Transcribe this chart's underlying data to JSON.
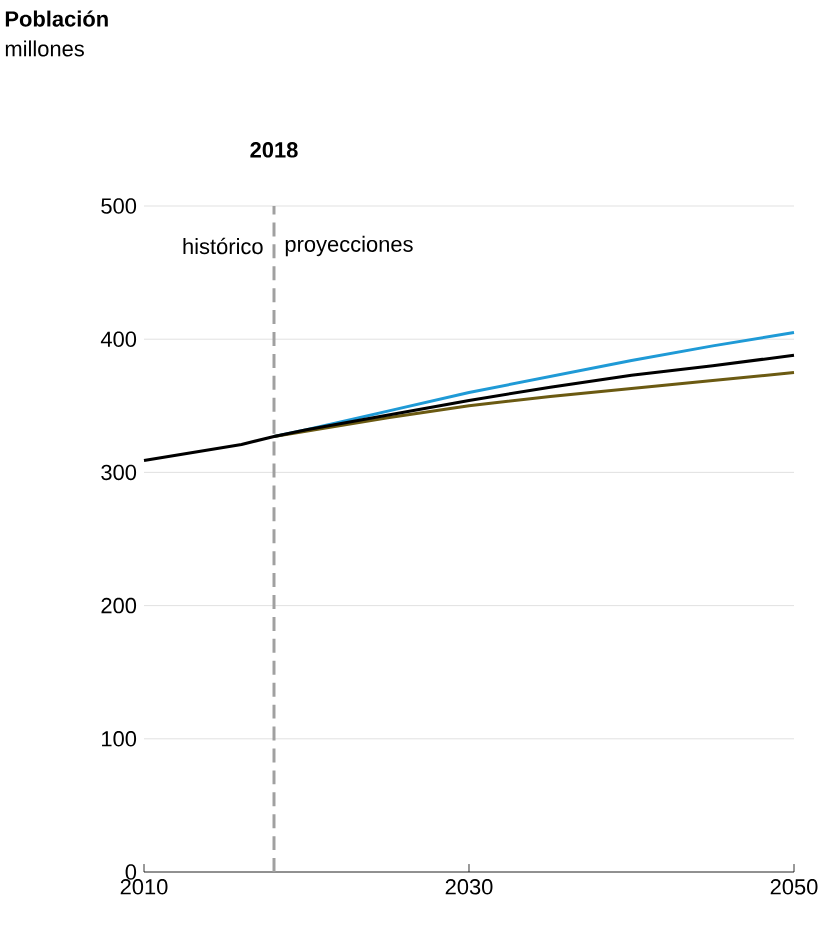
{
  "chart_data": {
    "type": "line",
    "title": "Población",
    "subtitle": "millones",
    "xlim": [
      2010,
      2050
    ],
    "xticks": [
      2010,
      2030,
      2050
    ],
    "ylim": [
      0,
      500
    ],
    "yticks": [
      0,
      100,
      200,
      300,
      400,
      500
    ],
    "grid": "y",
    "series": [
      {
        "color": "#1f9ad6",
        "x": [
          2018,
          2020,
          2025,
          2030,
          2035,
          2040,
          2045,
          2050
        ],
        "values": [
          327,
          332,
          346,
          360,
          372,
          384,
          395,
          405
        ]
      },
      {
        "color": "#6b5a12",
        "x": [
          2018,
          2020,
          2025,
          2030,
          2035,
          2040,
          2045,
          2050
        ],
        "values": [
          327,
          331,
          341,
          350,
          357,
          363,
          369,
          375
        ]
      },
      {
        "color": "#000000",
        "x": [
          2010,
          2012,
          2014,
          2016,
          2018,
          2020,
          2025,
          2030,
          2035,
          2040,
          2045,
          2050
        ],
        "values": [
          309,
          313,
          317,
          321,
          327,
          332,
          343,
          354,
          364,
          373,
          380,
          388
        ]
      }
    ],
    "ref_lines": [
      {
        "axis": "x",
        "value": 2018,
        "label": "2018",
        "color": "#a0a0a0",
        "line_style": "dashed"
      }
    ],
    "annotations": [
      "histórico",
      "proyecciones"
    ]
  }
}
